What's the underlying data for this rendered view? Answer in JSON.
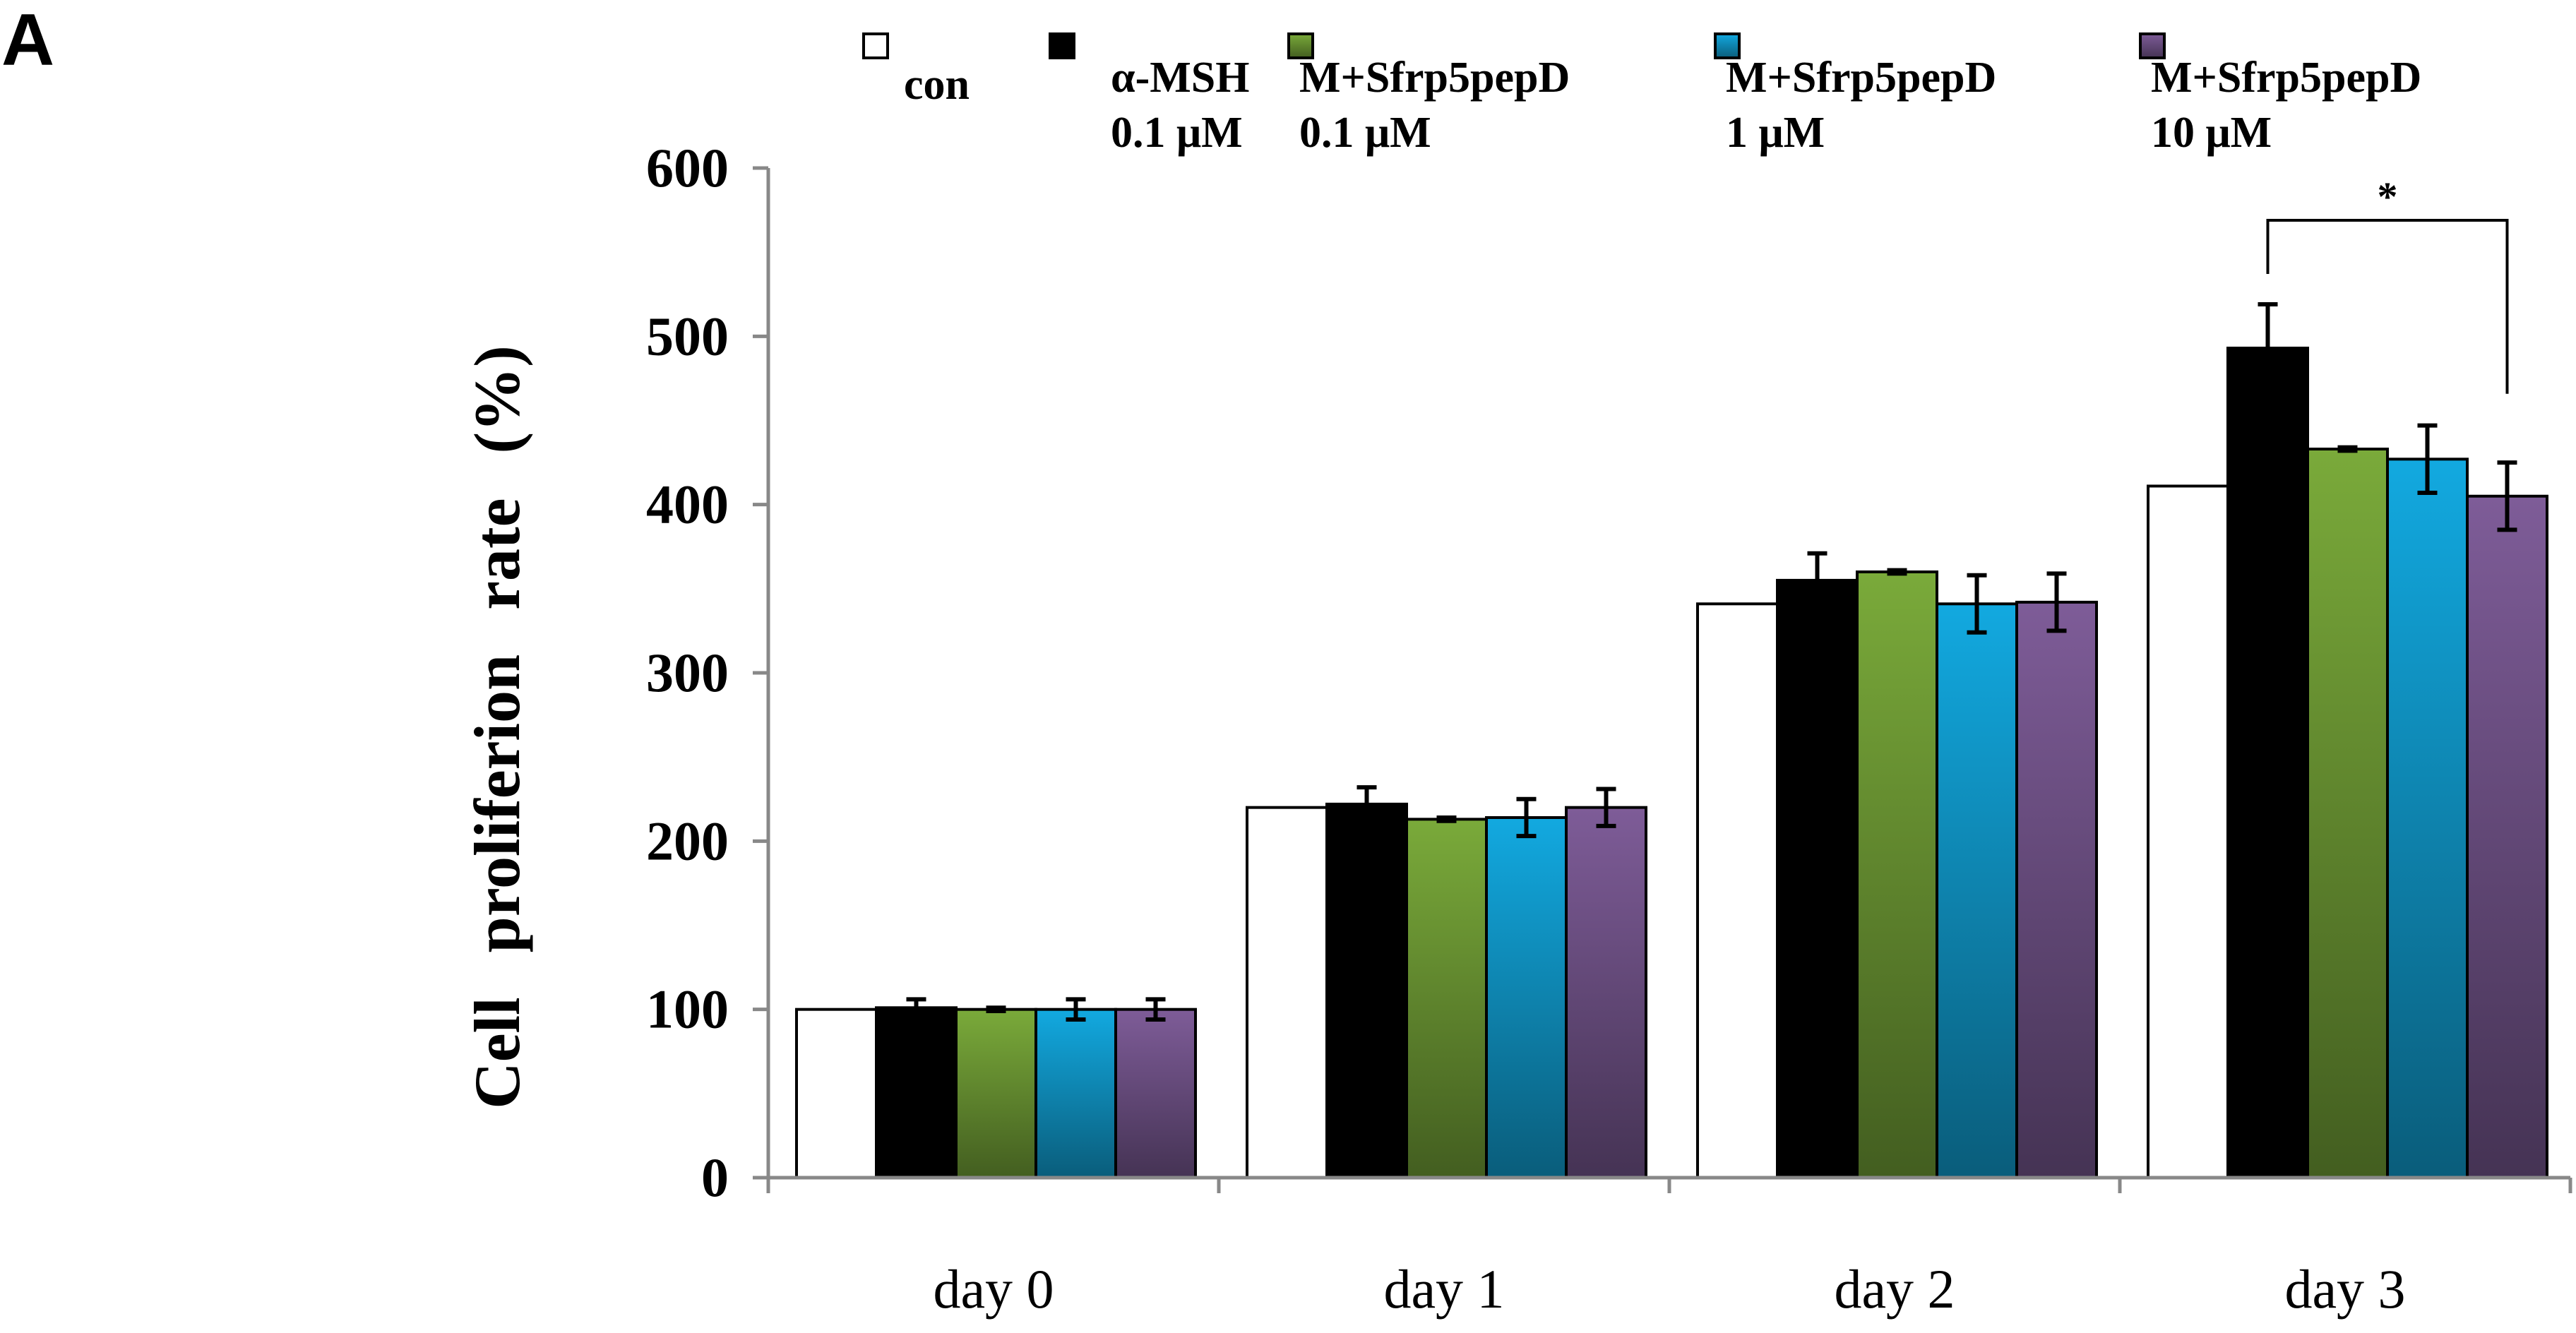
{
  "panel_label": "A",
  "chart_data": {
    "type": "bar",
    "title": "",
    "xlabel": "",
    "ylabel": "Cell proliferion rate (%)",
    "ylim": [
      0,
      600
    ],
    "yticks": [
      0,
      100,
      200,
      300,
      400,
      500,
      600
    ],
    "categories": [
      "day 0",
      "day 1",
      "day 2",
      "day 3"
    ],
    "series": [
      {
        "name": "con",
        "name_lines": [
          "con"
        ],
        "color": "#ffffff",
        "values": [
          100,
          220,
          341,
          411
        ],
        "errors": [
          0,
          0,
          0,
          0
        ]
      },
      {
        "name": "α-MSH 0.1 μM",
        "name_lines": [
          "α-MSH",
          "0.1 μM"
        ],
        "color": "#000000",
        "values": [
          101,
          222,
          355,
          493
        ],
        "errors": [
          5,
          10,
          16,
          26
        ]
      },
      {
        "name": "M+Sfrp5pepD 0.1 μM",
        "name_lines": [
          "M+Sfrp5pepD",
          "0.1 μM"
        ],
        "color": "#7aaa3a",
        "values": [
          100,
          213,
          360,
          433
        ],
        "errors": [
          1,
          1,
          1,
          1
        ]
      },
      {
        "name": "M+Sfrp5pepD 1 μM",
        "name_lines": [
          "M+Sfrp5pepD",
          "1 μM"
        ],
        "color": "#12a9e0",
        "values": [
          100,
          214,
          341,
          427
        ],
        "errors": [
          6,
          11,
          17,
          20
        ]
      },
      {
        "name": "M+Sfrp5pepD 10 μM",
        "name_lines": [
          "M+Sfrp5pepD",
          "10 μM"
        ],
        "color": "#7e5c98",
        "values": [
          100,
          220,
          342,
          405
        ],
        "errors": [
          6,
          11,
          17,
          20
        ]
      }
    ],
    "legend_position": "top",
    "annotations": [
      {
        "text": "*",
        "category": "day 3",
        "from_series": 1,
        "to_series": 4
      }
    ]
  }
}
